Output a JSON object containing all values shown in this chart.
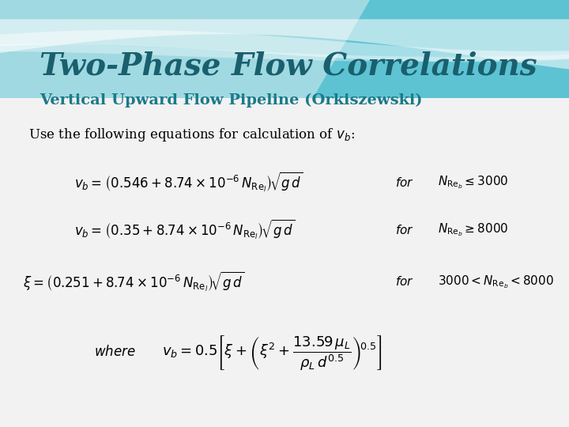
{
  "title": "Two-Phase Flow Correlations",
  "subtitle": "Vertical Upward Flow Pipeline (Orkiszewski)",
  "title_color": "#1a5f6e",
  "subtitle_color": "#1a7a8a",
  "bg_color": "#f2f2f2",
  "teal_dark": "#3ab8ca",
  "teal_mid": "#5ecfda",
  "teal_light": "#7dcfda",
  "white_wave": "#ffffff",
  "eq_color": "#000000",
  "title_fontsize": 28,
  "subtitle_fontsize": 14,
  "intro_fontsize": 12,
  "eq_fontsize": 12,
  "cond_fontsize": 11
}
